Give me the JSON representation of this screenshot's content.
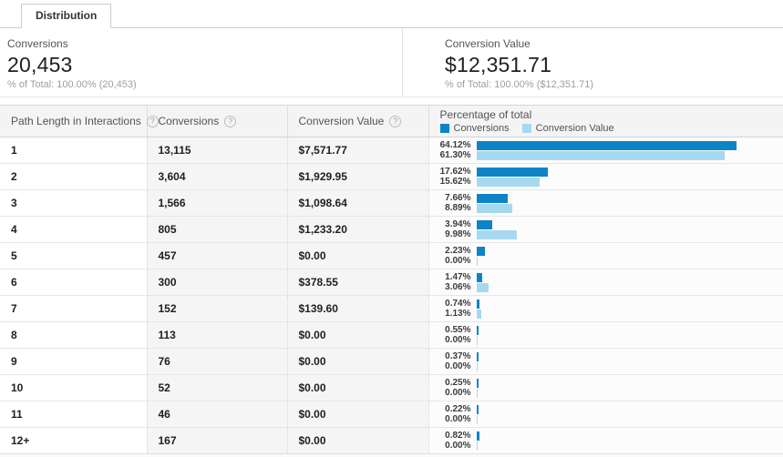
{
  "tabs": [
    {
      "label": "Distribution"
    }
  ],
  "summary": {
    "blocks": [
      {
        "label": "Conversions",
        "value": "20,453",
        "subtext": "% of Total: 100.00% (20,453)"
      },
      {
        "label": "Conversion Value",
        "value": "$12,351.71",
        "subtext": "% of Total: 100.00% ($12,351.71)"
      }
    ]
  },
  "table": {
    "columns": [
      {
        "label": "Path Length in Interactions",
        "help_icon": "?"
      },
      {
        "label": "Conversions",
        "help_icon": "?"
      },
      {
        "label": "Conversion Value",
        "help_icon": "?"
      }
    ],
    "chart_column": {
      "title": "Percentage of total",
      "legend": [
        {
          "label": "Conversions",
          "color": "#0c84c5"
        },
        {
          "label": "Conversion Value",
          "color": "#a6d9f0"
        }
      ]
    },
    "rows": [
      {
        "path": "1",
        "conversions": "13,115",
        "value": "$7,571.77",
        "pct_conversions": "64.12%",
        "pct_value": "61.30%"
      },
      {
        "path": "2",
        "conversions": "3,604",
        "value": "$1,929.95",
        "pct_conversions": "17.62%",
        "pct_value": "15.62%"
      },
      {
        "path": "3",
        "conversions": "1,566",
        "value": "$1,098.64",
        "pct_conversions": "7.66%",
        "pct_value": "8.89%"
      },
      {
        "path": "4",
        "conversions": "805",
        "value": "$1,233.20",
        "pct_conversions": "3.94%",
        "pct_value": "9.98%"
      },
      {
        "path": "5",
        "conversions": "457",
        "value": "$0.00",
        "pct_conversions": "2.23%",
        "pct_value": "0.00%"
      },
      {
        "path": "6",
        "conversions": "300",
        "value": "$378.55",
        "pct_conversions": "1.47%",
        "pct_value": "3.06%"
      },
      {
        "path": "7",
        "conversions": "152",
        "value": "$139.60",
        "pct_conversions": "0.74%",
        "pct_value": "1.13%"
      },
      {
        "path": "8",
        "conversions": "113",
        "value": "$0.00",
        "pct_conversions": "0.55%",
        "pct_value": "0.00%"
      },
      {
        "path": "9",
        "conversions": "76",
        "value": "$0.00",
        "pct_conversions": "0.37%",
        "pct_value": "0.00%"
      },
      {
        "path": "10",
        "conversions": "52",
        "value": "$0.00",
        "pct_conversions": "0.25%",
        "pct_value": "0.00%"
      },
      {
        "path": "11",
        "conversions": "46",
        "value": "$0.00",
        "pct_conversions": "0.22%",
        "pct_value": "0.00%"
      },
      {
        "path": "12+",
        "conversions": "167",
        "value": "$0.00",
        "pct_conversions": "0.82%",
        "pct_value": "0.00%"
      }
    ]
  },
  "chart_data": {
    "type": "bar",
    "orientation": "horizontal",
    "title": "Percentage of total",
    "categories": [
      "1",
      "2",
      "3",
      "4",
      "5",
      "6",
      "7",
      "8",
      "9",
      "10",
      "11",
      "12+"
    ],
    "series": [
      {
        "name": "Conversions",
        "color": "#0c84c5",
        "values": [
          64.12,
          17.62,
          7.66,
          3.94,
          2.23,
          1.47,
          0.74,
          0.55,
          0.37,
          0.25,
          0.22,
          0.82
        ]
      },
      {
        "name": "Conversion Value",
        "color": "#a6d9f0",
        "values": [
          61.3,
          15.62,
          8.89,
          9.98,
          0.0,
          3.06,
          1.13,
          0.0,
          0.0,
          0.0,
          0.0,
          0.0
        ]
      }
    ],
    "value_unit": "%",
    "xlim": [
      0,
      70
    ],
    "legend_position": "top"
  }
}
